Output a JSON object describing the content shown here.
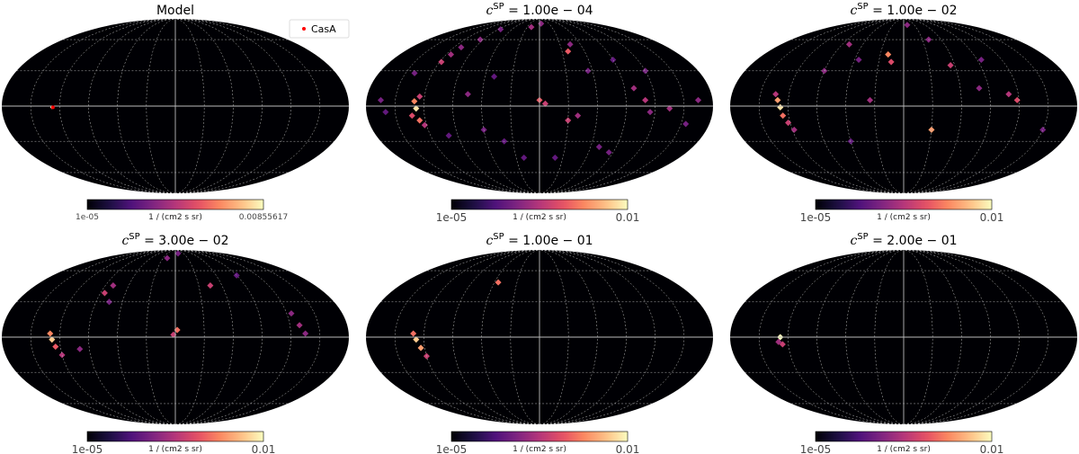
{
  "chart_data": [
    {
      "type": "heatmap",
      "projection": "mollweide",
      "title": "Model",
      "legend": {
        "entries": [
          {
            "label": "CasA",
            "marker": "dot",
            "color": "#ff0000"
          }
        ],
        "placement": "top-right"
      },
      "colorbar": {
        "min_label": "1e-05",
        "max_label": "0.00855617",
        "unit_label": "1 / (cm2 s sr)",
        "colormap": "magma"
      },
      "grid": true,
      "pixels": [
        {
          "lon": -128,
          "lat": -1,
          "value": 1.0,
          "size": 3
        }
      ],
      "markers": [
        {
          "label": "CasA",
          "lon": -127,
          "lat": -1
        }
      ]
    },
    {
      "type": "heatmap",
      "projection": "mollweide",
      "title": {
        "base": "c",
        "sup": "SP",
        "rest": " = 1.00e − 04"
      },
      "colorbar": {
        "min_label": "1e-05",
        "max_label": "0.01",
        "unit_label": "1 / (cm2 s sr)",
        "colormap": "magma"
      },
      "grid": true,
      "pixels": [
        {
          "lon": -128,
          "lat": -2,
          "value": 0.95
        },
        {
          "lon": -130,
          "lat": 4,
          "value": 0.75
        },
        {
          "lon": -125,
          "lat": 8,
          "value": 0.55
        },
        {
          "lon": -133,
          "lat": -8,
          "value": 0.6
        },
        {
          "lon": -126,
          "lat": -12,
          "value": 0.7
        },
        {
          "lon": -122,
          "lat": -16,
          "value": 0.5
        },
        {
          "lon": -118,
          "lat": 38,
          "value": 0.55
        },
        {
          "lon": -114,
          "lat": 45,
          "value": 0.45
        },
        {
          "lon": -110,
          "lat": 52,
          "value": 0.4
        },
        {
          "lon": -140,
          "lat": 28,
          "value": 0.35
        },
        {
          "lon": -95,
          "lat": 60,
          "value": 0.4
        },
        {
          "lon": -85,
          "lat": 72,
          "value": 0.35
        },
        {
          "lon": -165,
          "lat": 5,
          "value": 0.35
        },
        {
          "lon": -160,
          "lat": -5,
          "value": 0.3
        },
        {
          "lon": -75,
          "lat": 10,
          "value": 0.4
        },
        {
          "lon": -60,
          "lat": -20,
          "value": 0.35
        },
        {
          "lon": -50,
          "lat": 25,
          "value": 0.3
        },
        {
          "lon": -40,
          "lat": -30,
          "value": 0.3
        },
        {
          "lon": -20,
          "lat": 75,
          "value": 0.45
        },
        {
          "lon": 5,
          "lat": 80,
          "value": 0.4
        },
        {
          "lon": 0,
          "lat": 5,
          "value": 0.65
        },
        {
          "lon": 6,
          "lat": 2,
          "value": 0.55
        },
        {
          "lon": 30,
          "lat": -12,
          "value": 0.55
        },
        {
          "lon": 40,
          "lat": -8,
          "value": 0.45
        },
        {
          "lon": 38,
          "lat": 48,
          "value": 0.65
        },
        {
          "lon": 45,
          "lat": 55,
          "value": 0.4
        },
        {
          "lon": 55,
          "lat": 30,
          "value": 0.35
        },
        {
          "lon": 70,
          "lat": -35,
          "value": 0.35
        },
        {
          "lon": 85,
          "lat": -40,
          "value": 0.35
        },
        {
          "lon": 100,
          "lat": 15,
          "value": 0.45
        },
        {
          "lon": 110,
          "lat": 5,
          "value": 0.5
        },
        {
          "lon": 115,
          "lat": -5,
          "value": 0.4
        },
        {
          "lon": 135,
          "lat": -2,
          "value": 0.45
        },
        {
          "lon": 165,
          "lat": 5,
          "value": 0.4
        },
        {
          "lon": 155,
          "lat": -15,
          "value": 0.35
        },
        {
          "lon": 90,
          "lat": 40,
          "value": 0.3
        },
        {
          "lon": -20,
          "lat": -45,
          "value": 0.3
        },
        {
          "lon": 20,
          "lat": -45,
          "value": 0.3
        },
        {
          "lon": 120,
          "lat": 30,
          "value": 0.35
        },
        {
          "lon": -100,
          "lat": -25,
          "value": 0.3
        }
      ],
      "markers": []
    },
    {
      "type": "heatmap",
      "projection": "mollweide",
      "title": {
        "base": "c",
        "sup": "SP",
        "rest": " = 1.00e − 02"
      },
      "colorbar": {
        "min_label": "1e-05",
        "max_label": "0.01",
        "unit_label": "1 / (cm2 s sr)",
        "colormap": "magma"
      },
      "grid": true,
      "pixels": [
        {
          "lon": -128,
          "lat": -1,
          "value": 0.95
        },
        {
          "lon": -131,
          "lat": 5,
          "value": 0.8
        },
        {
          "lon": -126,
          "lat": -8,
          "value": 0.7
        },
        {
          "lon": -122,
          "lat": -14,
          "value": 0.55
        },
        {
          "lon": -134,
          "lat": 10,
          "value": 0.5
        },
        {
          "lon": -118,
          "lat": -20,
          "value": 0.45
        },
        {
          "lon": -90,
          "lat": 30,
          "value": 0.4
        },
        {
          "lon": -80,
          "lat": 55,
          "value": 0.45
        },
        {
          "lon": -55,
          "lat": 40,
          "value": 0.35
        },
        {
          "lon": -20,
          "lat": 45,
          "value": 0.75
        },
        {
          "lon": -15,
          "lat": 38,
          "value": 0.6
        },
        {
          "lon": -35,
          "lat": 5,
          "value": 0.45
        },
        {
          "lon": 10,
          "lat": 78,
          "value": 0.4
        },
        {
          "lon": 40,
          "lat": 60,
          "value": 0.4
        },
        {
          "lon": 55,
          "lat": 35,
          "value": 0.55
        },
        {
          "lon": 80,
          "lat": 15,
          "value": 0.4
        },
        {
          "lon": 30,
          "lat": -20,
          "value": 0.8
        },
        {
          "lon": 110,
          "lat": 10,
          "value": 0.5
        },
        {
          "lon": 118,
          "lat": 5,
          "value": 0.6
        },
        {
          "lon": 150,
          "lat": -20,
          "value": 0.35
        },
        {
          "lon": -60,
          "lat": -30,
          "value": 0.3
        },
        {
          "lon": 95,
          "lat": 40,
          "value": 0.35
        }
      ],
      "markers": []
    },
    {
      "type": "heatmap",
      "projection": "mollweide",
      "title": {
        "base": "c",
        "sup": "SP",
        "rest": " = 3.00e − 02"
      },
      "colorbar": {
        "min_label": "1e-05",
        "max_label": "0.01",
        "unit_label": "1 / (cm2 s sr)",
        "colormap": "magma"
      },
      "grid": true,
      "pixels": [
        {
          "lon": -128,
          "lat": -2,
          "value": 0.9
        },
        {
          "lon": -130,
          "lat": 3,
          "value": 0.75
        },
        {
          "lon": -125,
          "lat": -8,
          "value": 0.65
        },
        {
          "lon": -120,
          "lat": -15,
          "value": 0.5
        },
        {
          "lon": -100,
          "lat": -10,
          "value": 0.4
        },
        {
          "lon": -85,
          "lat": 38,
          "value": 0.55
        },
        {
          "lon": -80,
          "lat": 45,
          "value": 0.45
        },
        {
          "lon": -75,
          "lat": 30,
          "value": 0.35
        },
        {
          "lon": -20,
          "lat": 75,
          "value": 0.4
        },
        {
          "lon": 10,
          "lat": 82,
          "value": 0.35
        },
        {
          "lon": 2,
          "lat": 6,
          "value": 0.7
        },
        {
          "lon": -2,
          "lat": 2,
          "value": 0.55
        },
        {
          "lon": 45,
          "lat": 45,
          "value": 0.55
        },
        {
          "lon": 90,
          "lat": 55,
          "value": 0.3
        },
        {
          "lon": 125,
          "lat": 20,
          "value": 0.4
        },
        {
          "lon": 130,
          "lat": 10,
          "value": 0.45
        },
        {
          "lon": 135,
          "lat": 3,
          "value": 0.4
        }
      ],
      "markers": []
    },
    {
      "type": "heatmap",
      "projection": "mollweide",
      "title": {
        "base": "c",
        "sup": "SP",
        "rest": " = 1.00e − 01"
      },
      "colorbar": {
        "min_label": "1e-05",
        "max_label": "0.01",
        "unit_label": "1 / (cm2 s sr)",
        "colormap": "magma"
      },
      "grid": true,
      "pixels": [
        {
          "lon": -128,
          "lat": -2,
          "value": 0.9
        },
        {
          "lon": -131,
          "lat": 3,
          "value": 0.7
        },
        {
          "lon": -124,
          "lat": -9,
          "value": 0.8
        },
        {
          "lon": -120,
          "lat": -16,
          "value": 0.55
        },
        {
          "lon": -55,
          "lat": 48,
          "value": 0.7
        }
      ],
      "markers": []
    },
    {
      "type": "heatmap",
      "projection": "mollweide",
      "title": {
        "base": "c",
        "sup": "SP",
        "rest": " = 2.00e − 01"
      },
      "colorbar": {
        "min_label": "1e-05",
        "max_label": "0.01",
        "unit_label": "1 / (cm2 s sr)",
        "colormap": "magma"
      },
      "grid": true,
      "pixels": [
        {
          "lon": -128,
          "lat": 0,
          "value": 1.0
        },
        {
          "lon": -126,
          "lat": -6,
          "value": 0.55
        },
        {
          "lon": -130,
          "lat": -4,
          "value": 0.45
        }
      ],
      "markers": []
    }
  ],
  "colors": {
    "background": "#000004",
    "grid": "#bbbbbb",
    "legend_marker": "#ff0000"
  }
}
